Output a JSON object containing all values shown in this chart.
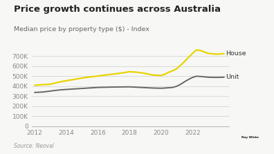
{
  "title": "Price growth continues across Australia",
  "subtitle": "Median price by property type ($) - Index",
  "source": "Source: Neoval",
  "background_color": "#f7f7f5",
  "plot_bg_color": "#f7f7f5",
  "house_color": "#e8d400",
  "unit_color": "#666666",
  "ylim": [
    0,
    800000
  ],
  "yticks": [
    0,
    100000,
    200000,
    300000,
    400000,
    500000,
    600000,
    700000
  ],
  "ytick_labels": [
    "0",
    "100K",
    "200K",
    "300K",
    "400K",
    "500K",
    "600K",
    "700K"
  ],
  "xlim": [
    2011.8,
    2024.3
  ],
  "xticks": [
    2012,
    2014,
    2016,
    2018,
    2020,
    2022
  ],
  "house_x": [
    2012,
    2012.5,
    2013,
    2013.5,
    2014,
    2014.5,
    2015,
    2015.5,
    2016,
    2016.5,
    2017,
    2017.5,
    2018,
    2018.5,
    2019,
    2019.5,
    2020,
    2020.25,
    2020.5,
    2020.75,
    2021,
    2021.25,
    2021.5,
    2021.75,
    2022,
    2022.25,
    2022.5,
    2022.75,
    2023,
    2023.5,
    2024
  ],
  "house_y": [
    410000,
    415000,
    420000,
    440000,
    455000,
    468000,
    482000,
    493000,
    502000,
    512000,
    522000,
    532000,
    545000,
    540000,
    528000,
    512000,
    508000,
    520000,
    540000,
    555000,
    575000,
    610000,
    648000,
    688000,
    728000,
    762000,
    758000,
    742000,
    728000,
    720000,
    725000
  ],
  "unit_x": [
    2012,
    2012.5,
    2013,
    2013.5,
    2014,
    2014.5,
    2015,
    2015.5,
    2016,
    2016.5,
    2017,
    2017.5,
    2018,
    2018.5,
    2019,
    2019.5,
    2020,
    2020.25,
    2020.5,
    2020.75,
    2021,
    2021.25,
    2021.5,
    2021.75,
    2022,
    2022.25,
    2022.5,
    2022.75,
    2023,
    2023.5,
    2024
  ],
  "unit_y": [
    338000,
    342000,
    352000,
    362000,
    368000,
    373000,
    378000,
    383000,
    388000,
    390000,
    392000,
    393000,
    394000,
    390000,
    386000,
    382000,
    380000,
    382000,
    385000,
    388000,
    400000,
    420000,
    445000,
    468000,
    488000,
    500000,
    498000,
    494000,
    490000,
    488000,
    490000
  ],
  "house_label": "House",
  "unit_label": "Unit",
  "logo_color": "#f0d800",
  "logo_text": "Ray White",
  "title_fontsize": 9.5,
  "subtitle_fontsize": 6.8,
  "source_fontsize": 5.5,
  "label_fontsize": 6.8,
  "tick_fontsize": 6.5
}
